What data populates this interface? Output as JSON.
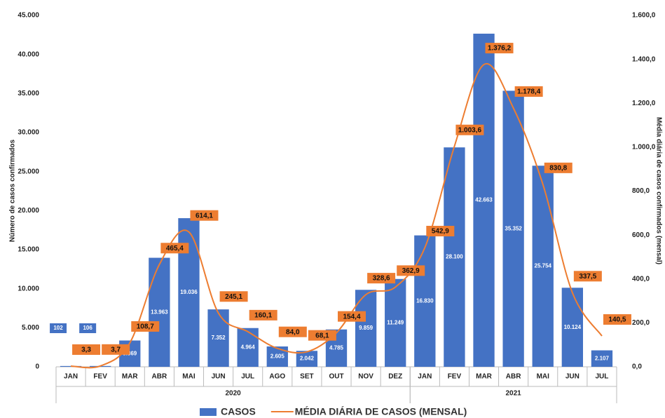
{
  "chart_data": {
    "type": "bar-line",
    "y_axis_label": "Número de casos confirmados",
    "y2_axis_label": "Média diária de casos confirmados (mensal)",
    "category_groups": [
      {
        "name": "2020",
        "categories": [
          "JAN",
          "FEV",
          "MAR",
          "ABR",
          "MAI",
          "JUN",
          "JUL",
          "AGO",
          "SET",
          "OUT",
          "NOV",
          "DEZ"
        ]
      },
      {
        "name": "2021",
        "categories": [
          "JAN",
          "FEV",
          "MAR",
          "ABR",
          "MAI",
          "JUN",
          "JUL"
        ]
      }
    ],
    "series": [
      {
        "name": "CASOS",
        "type": "bar",
        "color": "#4472c4",
        "values": [
          102,
          106,
          3369,
          13963,
          19036,
          7352,
          4964,
          2605,
          2042,
          4785,
          9859,
          11249,
          16830,
          28100,
          42663,
          35352,
          25754,
          10124,
          2107
        ],
        "value_labels": [
          "102",
          "106",
          "3.369",
          "13.963",
          "19.036",
          "7.352",
          "4.964",
          "2.605",
          "2.042",
          "4.785",
          "9.859",
          "11.249",
          "16.830",
          "28.100",
          "42.663",
          "35.352",
          "25.754",
          "10.124",
          "2.107"
        ]
      },
      {
        "name": "MÉDIA DIÁRIA DE CASOS (MENSAL)",
        "type": "line",
        "axis": "y2",
        "color": "#ed7d31",
        "values": [
          3.3,
          3.7,
          108.7,
          465.4,
          614.1,
          245.1,
          160.1,
          84.0,
          68.1,
          154.4,
          328.6,
          362.9,
          542.9,
          1003.6,
          1376.2,
          1178.4,
          830.8,
          337.5,
          140.5
        ],
        "value_labels": [
          "3,3",
          "3,7",
          "108,7",
          "465,4",
          "614,1",
          "245,1",
          "160,1",
          "84,0",
          "68,1",
          "154,4",
          "328,6",
          "362,9",
          "542,9",
          "1.003,6",
          "1.376,2",
          "1.178,4",
          "830,8",
          "337,5",
          "140,5"
        ]
      }
    ],
    "ylim": [
      0,
      45000
    ],
    "yticks": [
      0,
      {
        "value": 5000,
        "label": "5.000"
      },
      {
        "value": 10000,
        "label": "10.000"
      },
      {
        "value": 15000,
        "label": "15.000"
      },
      {
        "value": 20000,
        "label": "20.000"
      },
      {
        "value": 25000,
        "label": "25.000"
      },
      {
        "value": 30000,
        "label": "30.000"
      },
      {
        "value": 35000,
        "label": "35.000"
      },
      {
        "value": 40000,
        "label": "40.000"
      },
      {
        "value": 45000,
        "label": "45.000"
      }
    ],
    "y2lim": [
      0,
      1600
    ],
    "y2ticks": [
      {
        "value": 0,
        "label": "0,0"
      },
      {
        "value": 200,
        "label": "200,0"
      },
      {
        "value": 400,
        "label": "400,0"
      },
      {
        "value": 600,
        "label": "600,0"
      },
      {
        "value": 800,
        "label": "800,0"
      },
      {
        "value": 1000,
        "label": "1.000,0"
      },
      {
        "value": 1200,
        "label": "1.200,0"
      },
      {
        "value": 1400,
        "label": "1.400,0"
      },
      {
        "value": 1600,
        "label": "1.600,0"
      }
    ],
    "grid": false
  }
}
